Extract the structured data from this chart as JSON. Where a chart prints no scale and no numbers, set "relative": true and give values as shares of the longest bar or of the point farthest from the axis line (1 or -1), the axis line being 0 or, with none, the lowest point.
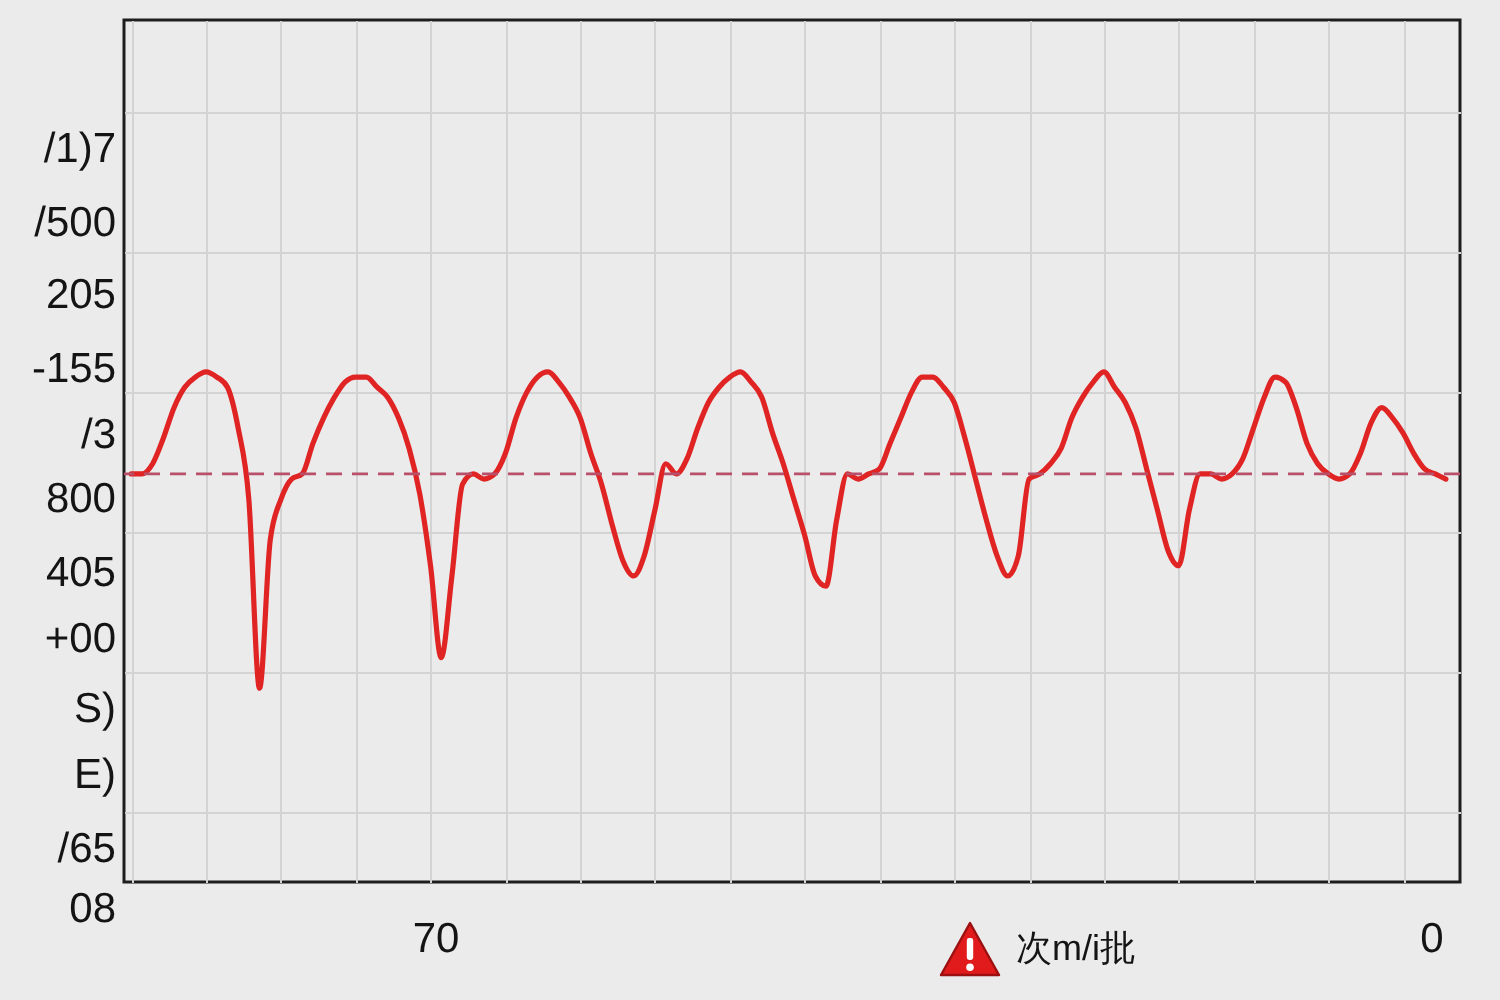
{
  "chart_data": {
    "type": "line",
    "relative": true,
    "categories": [
      null,
      null,
      null,
      null,
      null,
      null,
      null,
      null,
      null,
      null,
      null,
      null,
      null,
      null,
      null,
      null,
      null,
      null,
      null,
      null,
      null,
      null,
      null,
      null,
      null,
      null,
      null,
      null,
      null,
      null,
      null,
      null,
      null,
      null,
      null,
      null,
      null,
      null,
      null,
      null,
      null,
      null,
      null,
      null,
      null,
      null,
      null,
      null,
      null,
      null,
      null,
      null,
      null,
      null,
      null,
      null,
      null,
      null,
      null,
      null,
      null,
      null,
      null,
      null,
      null,
      null,
      null,
      null,
      null,
      null,
      null,
      null,
      null,
      null,
      null,
      null,
      null,
      null,
      null,
      null,
      null,
      null,
      null,
      null,
      null,
      null,
      null,
      null,
      null,
      null,
      null,
      null,
      null,
      null,
      null,
      null,
      null,
      null,
      null,
      null,
      null,
      null,
      null,
      null,
      null,
      null,
      null,
      null,
      null,
      null,
      null,
      null,
      null,
      null,
      null,
      null,
      null,
      null,
      null,
      null,
      null,
      null,
      null,
      null
    ],
    "series": [
      {
        "color": "#e02424",
        "values": [
          0.8,
          0.8,
          0.82,
          0.87,
          0.93,
          0.97,
          0.99,
          1.0,
          0.99,
          0.97,
          0.89,
          0.75,
          0.38,
          0.67,
          0.75,
          0.79,
          0.8,
          0.86,
          0.91,
          0.95,
          0.98,
          0.99,
          0.99,
          0.97,
          0.95,
          0.91,
          0.85,
          0.76,
          0.62,
          0.44,
          0.6,
          0.78,
          0.8,
          0.79,
          0.8,
          0.84,
          0.91,
          0.96,
          0.99,
          1.0,
          0.98,
          0.95,
          0.91,
          0.84,
          0.78,
          0.7,
          0.63,
          0.6,
          0.64,
          0.73,
          0.82,
          0.8,
          0.83,
          0.89,
          0.94,
          0.97,
          0.99,
          1.0,
          0.98,
          0.95,
          0.88,
          0.82,
          0.75,
          0.68,
          0.6,
          0.58,
          0.71,
          0.8,
          0.79,
          0.8,
          0.81,
          0.86,
          0.91,
          0.96,
          0.99,
          0.99,
          0.97,
          0.94,
          0.87,
          0.79,
          0.71,
          0.64,
          0.6,
          0.64,
          0.79,
          0.8,
          0.82,
          0.85,
          0.91,
          0.95,
          0.98,
          1.0,
          0.97,
          0.94,
          0.89,
          0.81,
          0.73,
          0.65,
          0.62,
          0.73,
          0.8,
          0.8,
          0.79,
          0.8,
          0.83,
          0.89,
          0.95,
          0.99,
          0.98,
          0.93,
          0.86,
          0.82,
          0.8,
          0.79,
          0.8,
          0.84,
          0.9,
          0.93,
          0.91,
          0.88,
          0.84,
          0.81,
          0.8,
          0.79
        ]
      }
    ],
    "ref_lines": [
      {
        "axis": "y",
        "value": 0.8,
        "color": "#b8506a",
        "line_style": "dashed"
      }
    ],
    "annotations": [
      "/1)7",
      "/500",
      "205",
      "-155",
      "/3",
      "800",
      "405",
      "+00",
      "S)",
      "E)",
      "/65",
      "08",
      "70",
      "次m/i批",
      "0"
    ],
    "grid": true
  }
}
